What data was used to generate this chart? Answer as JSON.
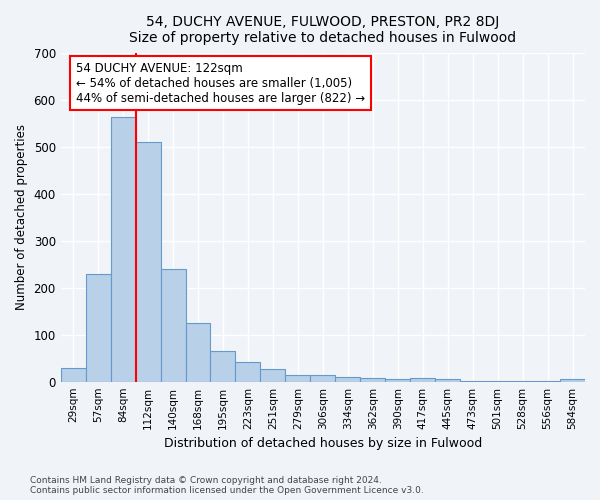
{
  "title": "54, DUCHY AVENUE, FULWOOD, PRESTON, PR2 8DJ",
  "subtitle": "Size of property relative to detached houses in Fulwood",
  "xlabel": "Distribution of detached houses by size in Fulwood",
  "ylabel": "Number of detached properties",
  "bins": [
    "29sqm",
    "57sqm",
    "84sqm",
    "112sqm",
    "140sqm",
    "168sqm",
    "195sqm",
    "223sqm",
    "251sqm",
    "279sqm",
    "306sqm",
    "334sqm",
    "362sqm",
    "390sqm",
    "417sqm",
    "445sqm",
    "473sqm",
    "501sqm",
    "528sqm",
    "556sqm",
    "584sqm"
  ],
  "values": [
    30,
    230,
    565,
    510,
    240,
    125,
    65,
    42,
    28,
    14,
    14,
    10,
    8,
    5,
    8,
    5,
    2,
    2,
    2,
    2,
    5
  ],
  "bar_color": "#b8d0e8",
  "bar_edge_color": "#6699cc",
  "annotation_line1": "54 DUCHY AVENUE: 122sqm",
  "annotation_line2": "← 54% of detached houses are smaller (1,005)",
  "annotation_line3": "44% of semi-detached houses are larger (822) →",
  "footer1": "Contains HM Land Registry data © Crown copyright and database right 2024.",
  "footer2": "Contains public sector information licensed under the Open Government Licence v3.0.",
  "background_color": "#f0f4f8",
  "plot_background_color": "#f0f4f8",
  "grid_color": "#ffffff",
  "ylim": [
    0,
    700
  ],
  "yticks": [
    0,
    100,
    200,
    300,
    400,
    500,
    600,
    700
  ],
  "red_line_x": 2.5
}
